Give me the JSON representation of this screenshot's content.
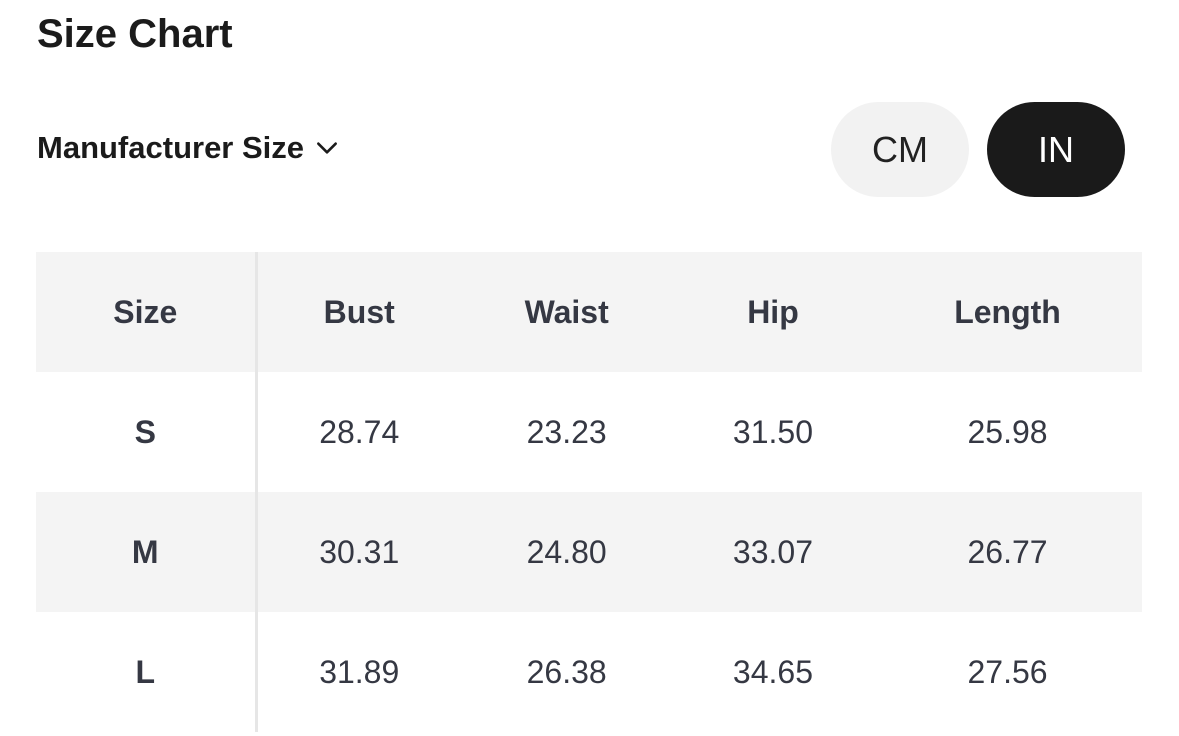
{
  "title": "Size Chart",
  "size_selector": {
    "label": "Manufacturer Size",
    "icon": "chevron-down-icon"
  },
  "units": {
    "options": [
      "CM",
      "IN"
    ],
    "selected": "IN"
  },
  "table": {
    "headers": [
      "Size",
      "Bust",
      "Waist",
      "Hip",
      "Length"
    ],
    "rows": [
      [
        "S",
        "28.74",
        "23.23",
        "31.50",
        "25.98"
      ],
      [
        "M",
        "30.31",
        "24.80",
        "33.07",
        "26.77"
      ],
      [
        "L",
        "31.89",
        "26.38",
        "34.65",
        "27.56"
      ]
    ]
  }
}
